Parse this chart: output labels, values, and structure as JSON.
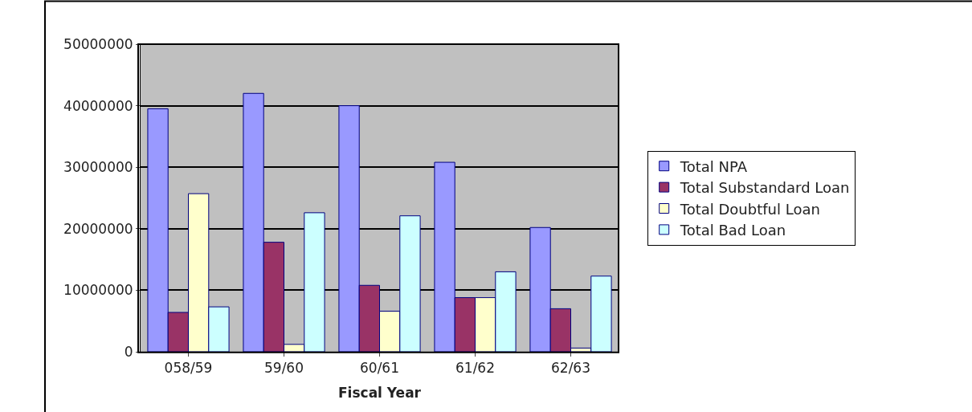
{
  "chart_data": {
    "type": "bar",
    "xlabel": "Fiscal Year",
    "categories": [
      "058/59",
      "59/60",
      "60/61",
      "61/62",
      "62/63"
    ],
    "series": [
      {
        "name": "Total NPA",
        "color": "#9999ff",
        "values": [
          39500000,
          42000000,
          40000000,
          30800000,
          20200000
        ]
      },
      {
        "name": "Total Substandard Loan",
        "color": "#993366",
        "values": [
          6400000,
          17800000,
          10800000,
          8800000,
          7000000
        ]
      },
      {
        "name": "Total Doubtful Loan",
        "color": "#ffffcc",
        "values": [
          25700000,
          1200000,
          6600000,
          8800000,
          600000
        ]
      },
      {
        "name": "Total Bad Loan",
        "color": "#ccffff",
        "values": [
          7300000,
          22600000,
          22100000,
          13000000,
          12300000
        ]
      }
    ],
    "ylim": [
      0,
      50000000
    ],
    "yticks": [
      0,
      10000000,
      20000000,
      30000000,
      40000000,
      50000000
    ],
    "grid": "y",
    "legend": "right"
  }
}
